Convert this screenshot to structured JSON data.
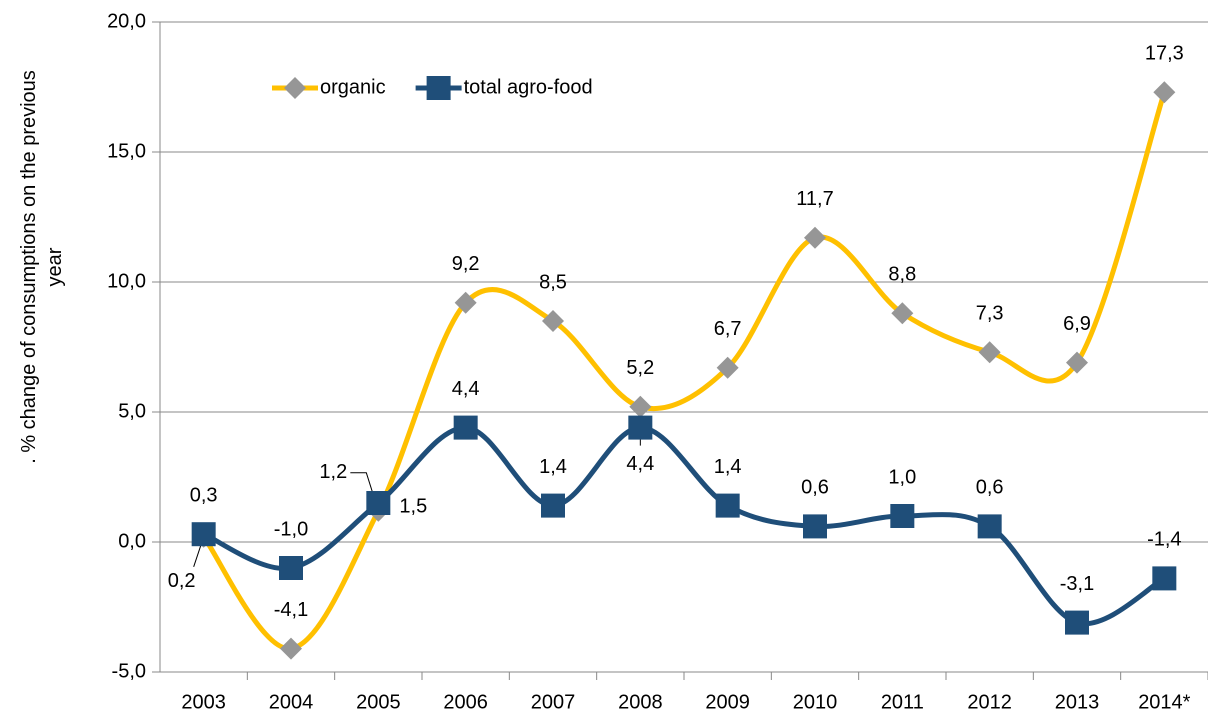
{
  "chart_data": {
    "type": "line",
    "y_label": ". % change of consumptions on the previous year",
    "categories": [
      "2003",
      "2004",
      "2005",
      "2006",
      "2007",
      "2008",
      "2009",
      "2010",
      "2011",
      "2012",
      "2013",
      "2014*"
    ],
    "series": [
      {
        "name": "organic",
        "color": "#FFC000",
        "marker": "diamond",
        "marker_color": "#969696",
        "values": [
          0.2,
          -4.1,
          1.2,
          9.2,
          8.5,
          5.2,
          6.7,
          11.7,
          8.8,
          7.3,
          6.9,
          17.3
        ],
        "value_labels": [
          "0,2",
          "-4,1",
          "1,2",
          "9,2",
          "8,5",
          "5,2",
          "6,7",
          "11,7",
          "8,8",
          "7,3",
          "6,9",
          "17,3"
        ]
      },
      {
        "name": "total agro-food",
        "color": "#1F4E79",
        "marker": "square",
        "marker_color": "#1F4E79",
        "values": [
          0.3,
          -1.0,
          1.5,
          4.4,
          1.4,
          4.4,
          1.4,
          0.6,
          1.0,
          0.6,
          -3.1,
          -1.4
        ],
        "value_labels": [
          "0,3",
          "-1,0",
          "1,5",
          "4,4",
          "1,4",
          "4,4",
          "1,4",
          "0,6",
          "1,0",
          "0,6",
          "-3,1",
          "-1,4"
        ]
      }
    ],
    "ylim": [
      -5,
      20
    ],
    "yticks": [
      {
        "value": -5,
        "label": "-5,0"
      },
      {
        "value": 0,
        "label": "0,0"
      },
      {
        "value": 5,
        "label": "5,0"
      },
      {
        "value": 10,
        "label": "10,0"
      },
      {
        "value": 15,
        "label": "15,0"
      },
      {
        "value": 20,
        "label": "20,0"
      }
    ],
    "grid": true,
    "legend": "upper left",
    "smooth": true
  }
}
